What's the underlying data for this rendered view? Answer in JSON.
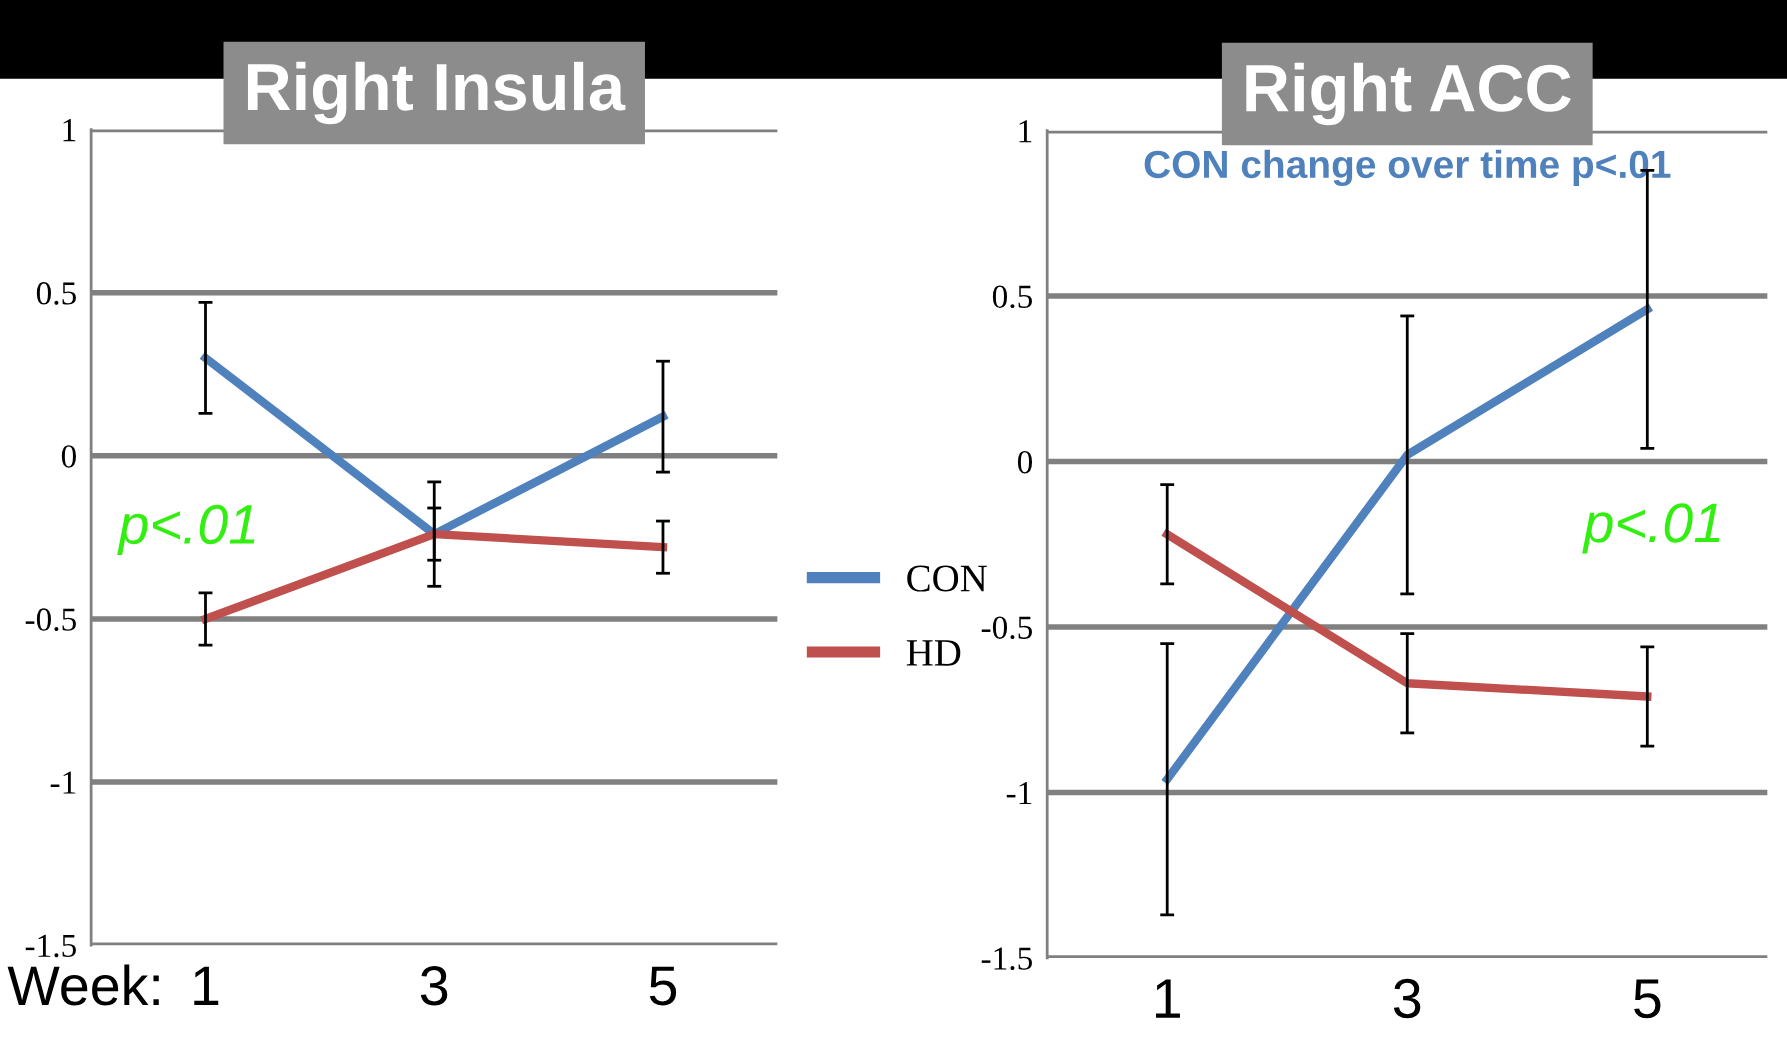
{
  "chart_data": [
    {
      "type": "line",
      "title": "Right Insula",
      "categories": [
        "1",
        "3",
        "5"
      ],
      "series": [
        {
          "name": "CON",
          "color": "#4f81bd",
          "values": [
            0.3,
            -0.24,
            0.12
          ],
          "errors": [
            0.17,
            0.08,
            0.17
          ]
        },
        {
          "name": "HD",
          "color": "#c0504d",
          "values": [
            -0.5,
            -0.24,
            -0.28
          ],
          "errors": [
            0.08,
            0.16,
            0.08
          ]
        }
      ],
      "ylim": [
        -1.5,
        1
      ],
      "yticks": [
        -1.5,
        -1,
        -0.5,
        0,
        0.5,
        1
      ],
      "grid": "y",
      "legend": "right",
      "marker": "none",
      "line_style": "solid",
      "annotations": [
        "p<.01",
        "Week:"
      ]
    },
    {
      "type": "line",
      "title": "Right ACC",
      "categories": [
        "1",
        "3",
        "5"
      ],
      "series": [
        {
          "color": "#4f81bd",
          "values": [
            -0.96,
            0.02,
            0.46
          ],
          "errors": [
            0.41,
            0.42,
            0.42
          ]
        },
        {
          "color": "#c0504d",
          "values": [
            -0.22,
            -0.67,
            -0.71
          ],
          "errors": [
            0.15,
            0.15,
            0.15
          ]
        }
      ],
      "ylim": [
        -1.5,
        1
      ],
      "yticks": [
        -1.5,
        -1,
        -0.5,
        0,
        0.5,
        1
      ],
      "grid": "y",
      "legend": false,
      "marker": "none",
      "line_style": "solid",
      "annotations": [
        "CON change over time p<.01",
        "p<.01"
      ]
    }
  ]
}
